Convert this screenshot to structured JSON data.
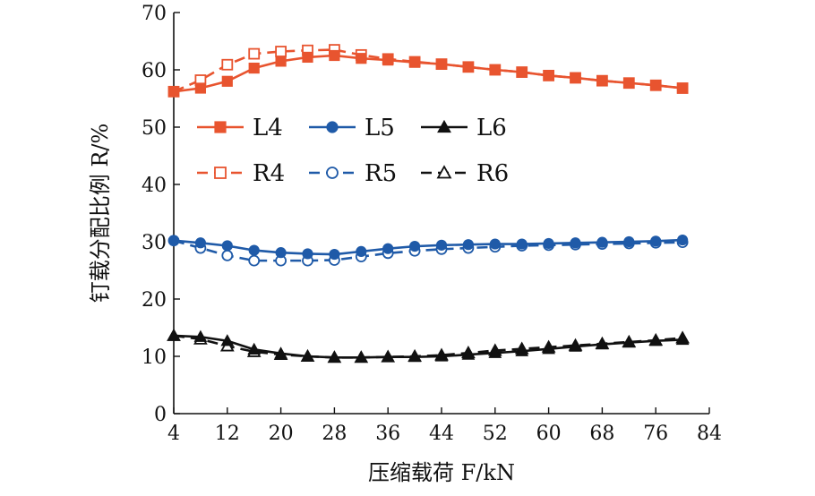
{
  "chart_data": {
    "type": "line",
    "xlabel": "压缩载荷 F/kN",
    "ylabel": "钉载分配比例 R/%",
    "xlim": [
      4,
      84
    ],
    "ylim": [
      0,
      70
    ],
    "xticks": [
      4,
      12,
      20,
      28,
      36,
      44,
      52,
      60,
      68,
      76,
      84
    ],
    "yticks": [
      0,
      10,
      20,
      30,
      40,
      50,
      60,
      70
    ],
    "grid": false,
    "legend_position": "upper-left (inside)",
    "series": [
      {
        "name": "L4",
        "color": "#e8542f",
        "dash": "solid",
        "marker": "square",
        "filled": true,
        "x": [
          4,
          8,
          12,
          16,
          20,
          24,
          28,
          32,
          36,
          40,
          44,
          48,
          52,
          56,
          60,
          64,
          68,
          72,
          76,
          80
        ],
        "y": [
          56.2,
          56.8,
          58.0,
          60.3,
          61.5,
          62.2,
          62.5,
          62.0,
          61.7,
          61.3,
          61.0,
          60.5,
          60.0,
          59.6,
          59.0,
          58.6,
          58.1,
          57.7,
          57.3,
          56.8
        ]
      },
      {
        "name": "L5",
        "color": "#1f5aa8",
        "dash": "solid",
        "marker": "circle",
        "filled": true,
        "x": [
          4,
          8,
          12,
          16,
          20,
          24,
          28,
          32,
          36,
          40,
          44,
          48,
          52,
          56,
          60,
          64,
          68,
          72,
          76,
          80
        ],
        "y": [
          30.2,
          29.8,
          29.3,
          28.5,
          28.1,
          27.9,
          27.8,
          28.3,
          28.8,
          29.2,
          29.4,
          29.5,
          29.6,
          29.6,
          29.7,
          29.8,
          29.9,
          30.0,
          30.1,
          30.3
        ]
      },
      {
        "name": "L6",
        "color": "#111111",
        "dash": "solid",
        "marker": "triangle",
        "filled": true,
        "x": [
          4,
          8,
          12,
          16,
          20,
          24,
          28,
          32,
          36,
          40,
          44,
          48,
          52,
          56,
          60,
          64,
          68,
          72,
          76,
          80
        ],
        "y": [
          13.6,
          13.4,
          12.7,
          11.2,
          10.5,
          10.0,
          9.8,
          9.8,
          9.9,
          9.9,
          10.0,
          10.3,
          10.6,
          10.9,
          11.3,
          11.7,
          12.1,
          12.4,
          12.7,
          12.9
        ]
      },
      {
        "name": "R4",
        "color": "#e8542f",
        "dash": "dashed",
        "marker": "square",
        "filled": false,
        "x": [
          4,
          8,
          12,
          16,
          20,
          24,
          28,
          32,
          36,
          40,
          44,
          48,
          52,
          56,
          60,
          64,
          68,
          72,
          76,
          80
        ],
        "y": [
          56.2,
          58.2,
          60.9,
          62.8,
          63.2,
          63.4,
          63.5,
          62.6,
          61.9,
          61.4,
          61.0,
          60.5,
          60.0,
          59.6,
          59.0,
          58.6,
          58.1,
          57.7,
          57.3,
          56.8
        ]
      },
      {
        "name": "R5",
        "color": "#1f5aa8",
        "dash": "dashed",
        "marker": "circle",
        "filled": false,
        "x": [
          4,
          8,
          12,
          16,
          20,
          24,
          28,
          32,
          36,
          40,
          44,
          48,
          52,
          56,
          60,
          64,
          68,
          72,
          76,
          80
        ],
        "y": [
          30.2,
          28.9,
          27.6,
          26.7,
          26.7,
          26.7,
          26.8,
          27.4,
          28.0,
          28.4,
          28.7,
          28.9,
          29.1,
          29.3,
          29.4,
          29.5,
          29.6,
          29.7,
          29.8,
          29.9
        ]
      },
      {
        "name": "R6",
        "color": "#111111",
        "dash": "dashed",
        "marker": "triangle",
        "filled": false,
        "x": [
          4,
          8,
          12,
          16,
          20,
          24,
          28,
          32,
          36,
          40,
          44,
          48,
          52,
          56,
          60,
          64,
          68,
          72,
          76,
          80
        ],
        "y": [
          13.6,
          13.0,
          11.8,
          10.8,
          10.3,
          10.0,
          9.8,
          9.8,
          9.9,
          10.0,
          10.2,
          10.6,
          11.0,
          11.3,
          11.6,
          11.9,
          12.2,
          12.5,
          12.8,
          13.2
        ]
      }
    ]
  }
}
